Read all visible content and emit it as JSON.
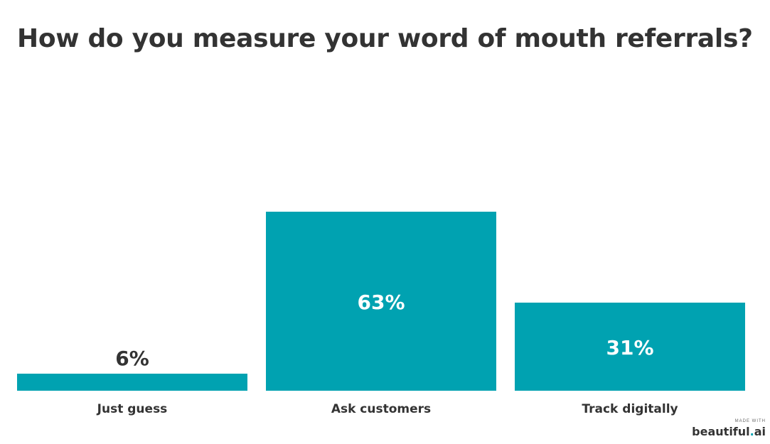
{
  "chart_data": {
    "type": "bar",
    "title": "How do you measure your word of mouth referrals?",
    "categories": [
      "Just guess",
      "Ask customers",
      "Track digitally"
    ],
    "values": [
      6,
      63,
      31
    ],
    "value_labels": [
      "6%",
      "63%",
      "31%"
    ],
    "ylim": [
      0,
      63
    ],
    "grid": false,
    "bar_color": "#00a2b1",
    "label_inside_color": "#ffffff",
    "label_outside_color": "#333333"
  },
  "credit": {
    "small": "MADE WITH",
    "brand_main": "beautiful",
    "brand_dot": ".",
    "brand_suffix": "ai"
  }
}
